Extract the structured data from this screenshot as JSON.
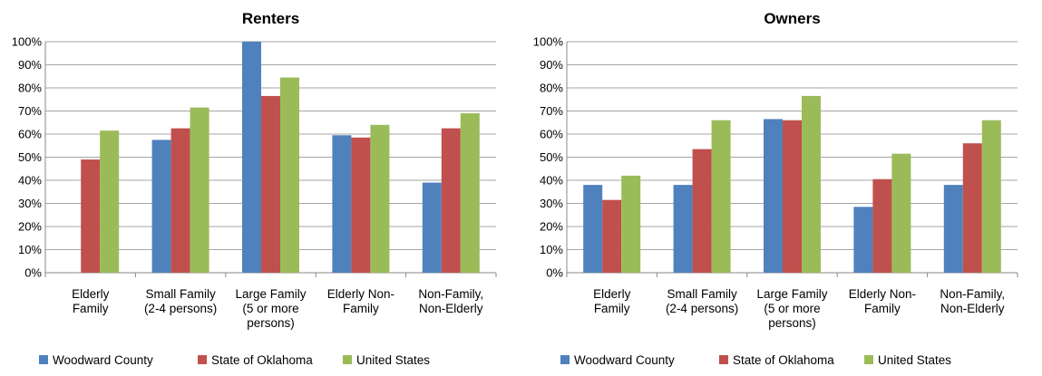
{
  "chart_data": [
    {
      "type": "bar",
      "title": "Renters",
      "xlabel": "",
      "ylabel": "",
      "ylim": [
        0,
        100
      ],
      "yticks": [
        "0%",
        "10%",
        "20%",
        "30%",
        "40%",
        "50%",
        "60%",
        "70%",
        "80%",
        "90%",
        "100%"
      ],
      "grid": true,
      "legend_position": "bottom",
      "categories": [
        [
          "Elderly",
          "Family"
        ],
        [
          "Small Family",
          "(2-4 persons)"
        ],
        [
          "Large Family",
          "(5 or more",
          "persons)"
        ],
        [
          "Elderly Non-",
          "Family"
        ],
        [
          "Non-Family,",
          "Non-Elderly"
        ]
      ],
      "series": [
        {
          "name": "Woodward County",
          "color": "#4f81bd",
          "values": [
            0,
            57.5,
            100,
            59.5,
            39
          ]
        },
        {
          "name": "State of Oklahoma",
          "color": "#c0504d",
          "values": [
            49,
            62.5,
            76.5,
            58.5,
            62.5
          ]
        },
        {
          "name": "United States",
          "color": "#9bbb59",
          "values": [
            61.5,
            71.5,
            84.5,
            64,
            69
          ]
        }
      ]
    },
    {
      "type": "bar",
      "title": "Owners",
      "xlabel": "",
      "ylabel": "",
      "ylim": [
        0,
        100
      ],
      "yticks": [
        "0%",
        "10%",
        "20%",
        "30%",
        "40%",
        "50%",
        "60%",
        "70%",
        "80%",
        "90%",
        "100%"
      ],
      "grid": true,
      "legend_position": "bottom",
      "categories": [
        [
          "Elderly",
          "Family"
        ],
        [
          "Small Family",
          "(2-4 persons)"
        ],
        [
          "Large Family",
          "(5 or more",
          "persons)"
        ],
        [
          "Elderly Non-",
          "Family"
        ],
        [
          "Non-Family,",
          "Non-Elderly"
        ]
      ],
      "series": [
        {
          "name": "Woodward County",
          "color": "#4f81bd",
          "values": [
            38,
            38,
            66.5,
            28.5,
            38
          ]
        },
        {
          "name": "State of Oklahoma",
          "color": "#c0504d",
          "values": [
            31.5,
            53.5,
            66,
            40.5,
            56
          ]
        },
        {
          "name": "United States",
          "color": "#9bbb59",
          "values": [
            42,
            66,
            76.5,
            51.5,
            66
          ]
        }
      ]
    }
  ]
}
